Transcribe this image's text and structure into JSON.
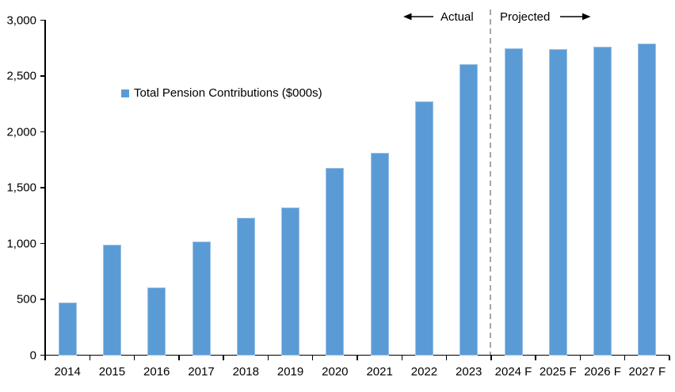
{
  "chart_data": {
    "type": "bar",
    "title": "",
    "legend": "Total Pension Contributions ($000s)",
    "categories": [
      "2014",
      "2015",
      "2016",
      "2017",
      "2018",
      "2019",
      "2020",
      "2021",
      "2022",
      "2023",
      "2024 F",
      "2025 F",
      "2026 F",
      "2027 F"
    ],
    "values": [
      470,
      990,
      610,
      1020,
      1230,
      1320,
      1680,
      1810,
      2270,
      2610,
      2750,
      2740,
      2765,
      2790
    ],
    "xlabel": "",
    "ylabel": "",
    "ylim": [
      0,
      3000
    ],
    "ytick_step": 500,
    "ytick_labels": [
      "0",
      "500",
      "1,000",
      "1,500",
      "2,000",
      "2,500",
      "3,000"
    ],
    "grid": false,
    "legend_position": "inside-upper-left",
    "bar_color": "#5B9BD5",
    "bar_edge_color": "#9CC2E5",
    "axis_color": "#000000",
    "divider": {
      "after_category": "2023",
      "color": "#A6A6A6",
      "style": "dashed"
    },
    "annotations": [
      {
        "label": "Actual",
        "side": "left-of-divider",
        "arrow": "left"
      },
      {
        "label": "Projected",
        "side": "right-of-divider",
        "arrow": "right"
      }
    ]
  }
}
